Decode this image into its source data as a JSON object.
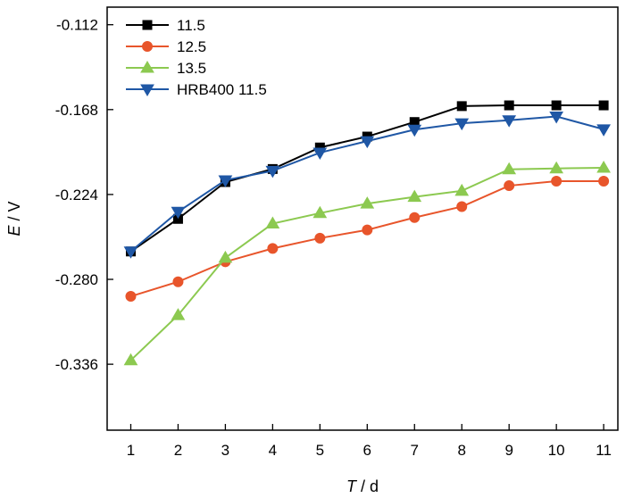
{
  "chart_data": {
    "type": "line",
    "x_axis": {
      "label_italic": "T",
      "label_rest": " / d",
      "range": [
        0.5,
        11.3
      ],
      "ticks": [
        1,
        2,
        3,
        4,
        5,
        6,
        7,
        8,
        9,
        10,
        11
      ],
      "tick_labels": [
        "1",
        "2",
        "3",
        "4",
        "5",
        "6",
        "7",
        "8",
        "9",
        "10",
        "11"
      ]
    },
    "y_axis": {
      "label_italic": "E",
      "label_rest": " / V",
      "range": [
        -0.3795,
        -0.1004
      ],
      "ticks": [
        -0.112,
        -0.168,
        -0.224,
        -0.28,
        -0.336
      ],
      "tick_labels": [
        "-0.112",
        "-0.168",
        "-0.224",
        "-0.280",
        "-0.336"
      ]
    },
    "grid": false,
    "legend_position": "top-left",
    "x": [
      1,
      2,
      3,
      4,
      5,
      6,
      7,
      8,
      9,
      10,
      11
    ],
    "series": [
      {
        "name": "11.5",
        "color": "#000000",
        "marker": "square",
        "values": [
          -0.2616,
          -0.2401,
          -0.2158,
          -0.2072,
          -0.193,
          -0.1858,
          -0.1762,
          -0.1657,
          -0.1652,
          -0.1652,
          -0.1652
        ]
      },
      {
        "name": "12.5",
        "color": "#e8552b",
        "marker": "circle",
        "values": [
          -0.2912,
          -0.2816,
          -0.2684,
          -0.2596,
          -0.2528,
          -0.2474,
          -0.2392,
          -0.232,
          -0.2182,
          -0.2152,
          -0.2152
        ]
      },
      {
        "name": "13.5",
        "color": "#8cc950",
        "marker": "triangle-up",
        "values": [
          -0.3334,
          -0.3036,
          -0.2658,
          -0.2432,
          -0.2363,
          -0.23,
          -0.2256,
          -0.2216,
          -0.2074,
          -0.2068,
          -0.2064
        ]
      },
      {
        "name": "HRB400 11.5",
        "color": "#1f57a5",
        "marker": "triangle-down",
        "values": [
          -0.2616,
          -0.2354,
          -0.2146,
          -0.2084,
          -0.1964,
          -0.1888,
          -0.1812,
          -0.177,
          -0.175,
          -0.1725,
          -0.181
        ]
      }
    ]
  }
}
